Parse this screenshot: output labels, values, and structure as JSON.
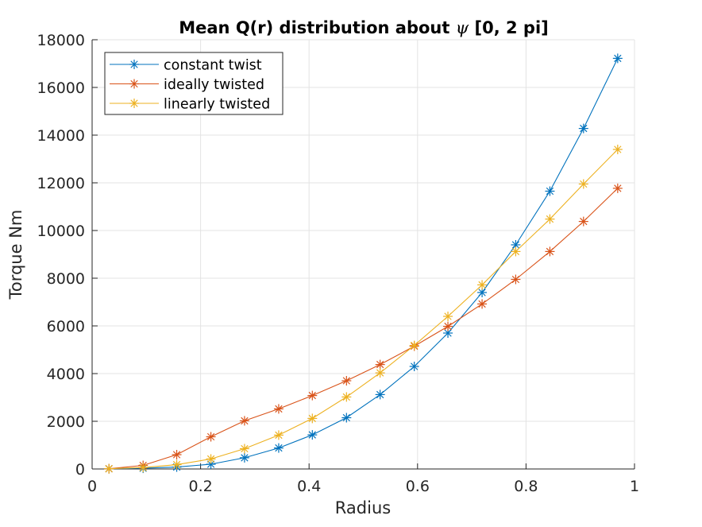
{
  "chart_data": {
    "type": "line",
    "title": "Mean Q(r) distribution about",
    "title_symbol": "ψ",
    "title_suffix": "[0, 2 pi]",
    "xlabel": "Radius",
    "ylabel": "Torque Nm",
    "xlim": [
      0,
      1
    ],
    "ylim": [
      0,
      18000
    ],
    "xticks": [
      0,
      0.2,
      0.4,
      0.6,
      0.8,
      1
    ],
    "xtick_labels": [
      "0",
      "0.2",
      "0.4",
      "0.6",
      "0.8",
      "1"
    ],
    "yticks": [
      0,
      2000,
      4000,
      6000,
      8000,
      10000,
      12000,
      14000,
      16000,
      18000
    ],
    "ytick_labels": [
      "0",
      "2000",
      "4000",
      "6000",
      "8000",
      "10000",
      "12000",
      "14000",
      "16000",
      "18000"
    ],
    "grid": true,
    "legend_position": "top-left",
    "marker": "asterisk",
    "x": [
      0.031,
      0.094,
      0.156,
      0.219,
      0.281,
      0.344,
      0.406,
      0.469,
      0.531,
      0.594,
      0.656,
      0.719,
      0.781,
      0.844,
      0.906,
      0.969
    ],
    "series": [
      {
        "name": "constant twist",
        "color": "#0072BD",
        "values": [
          10,
          30,
          80,
          200,
          470,
          880,
          1430,
          2150,
          3120,
          4300,
          5700,
          7400,
          9400,
          11650,
          14280,
          17220
        ]
      },
      {
        "name": "ideally twisted",
        "color": "#D95319",
        "values": [
          10,
          150,
          600,
          1350,
          2020,
          2520,
          3080,
          3700,
          4380,
          5150,
          5980,
          6920,
          7950,
          9120,
          10380,
          11770
        ]
      },
      {
        "name": "linearly twisted",
        "color": "#EDB120",
        "values": [
          10,
          60,
          180,
          420,
          850,
          1420,
          2120,
          3020,
          4030,
          5180,
          6400,
          7720,
          9120,
          10480,
          11950,
          13400
        ]
      }
    ]
  }
}
